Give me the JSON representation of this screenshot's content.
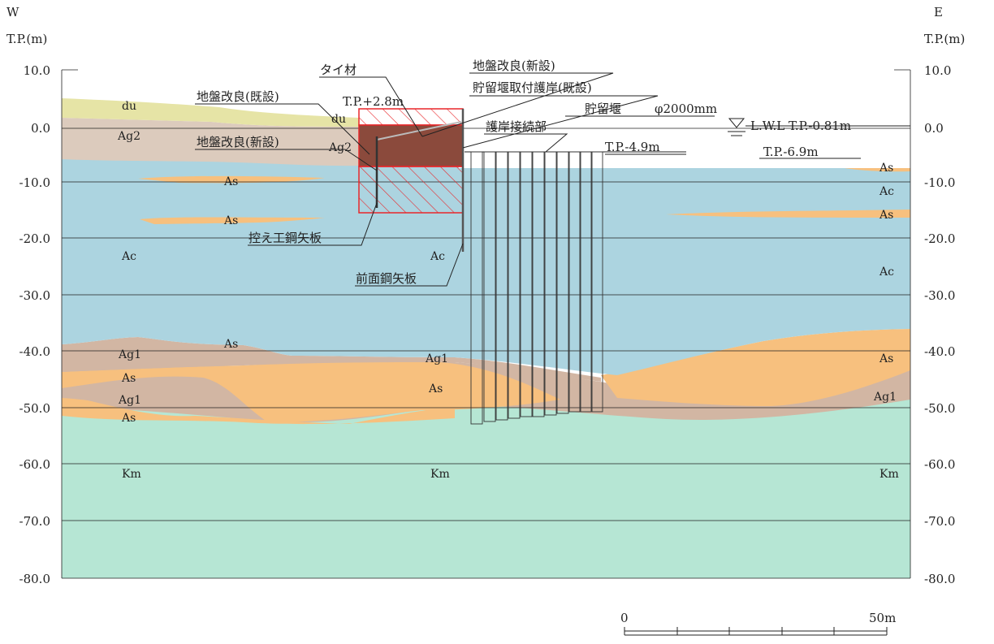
{
  "compass": {
    "west": "W",
    "east": "E"
  },
  "axis": {
    "left_title": "T.P.(m)",
    "right_title": "T.P.(m)",
    "ticks": [
      "10.0",
      "0.0",
      "-10.0",
      "-20.0",
      "-30.0",
      "-40.0",
      "-50.0",
      "-60.0",
      "-70.0",
      "-80.0"
    ],
    "tick_values": [
      10,
      0,
      -10,
      -20,
      -30,
      -40,
      -50,
      -60,
      -70,
      -80
    ]
  },
  "soils": {
    "du": "du",
    "Ag2": "Ag2",
    "As": "As",
    "Ac": "Ac",
    "Ag1": "Ag1",
    "Km": "Km"
  },
  "colors": {
    "du": "#e6e4a6",
    "Ag2": "#dccbbd",
    "Ac": "#acd4e0",
    "As": "#f7c07e",
    "Ag1": "#d2b6a3",
    "Km": "#b6e6d4",
    "improvement_new": "#8b4a3c",
    "hatch": "#e8262a"
  },
  "callouts": {
    "tie": "タイ材",
    "ground_existing": "地盤改良(既設)",
    "ground_new_top": "地盤改良(新設)",
    "ground_new_left": "地盤改良(新設)",
    "revetment": "貯留堰取付護岸(既設)",
    "weir": "貯留堰",
    "diameter": "φ2000mm",
    "joint": "護岸接続部",
    "anchor_pile": "控え工鋼矢板",
    "front_pile": "前面鋼矢板"
  },
  "levels": {
    "crest": "T.P.+2.8m",
    "weir_top": "T.P.-4.9m",
    "seabed": "T.P.-6.9m",
    "lwl": "L.W.L T.P.-0.81m"
  },
  "scale": {
    "zero": "0",
    "end": "50m"
  }
}
